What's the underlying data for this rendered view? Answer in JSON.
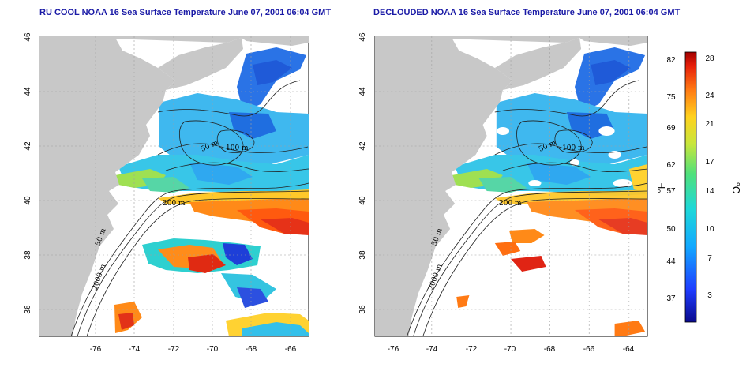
{
  "panels": [
    {
      "id": "left",
      "title": "RU COOL NOAA 16 Sea Surface Temperature June 07, 2001 06:04 GMT"
    },
    {
      "id": "right",
      "title": "DECLOUDED NOAA 16 Sea Surface Temperature June 07, 2001 06:04 GMT"
    }
  ],
  "axes": {
    "x_ticks": [
      "-76",
      "-74",
      "-72",
      "-70",
      "-68",
      "-66",
      "-64"
    ],
    "y_ticks": [
      "36",
      "38",
      "40",
      "42",
      "44",
      "46"
    ]
  },
  "contour_labels": {
    "c50_upper": "50 m",
    "c100": "100 m",
    "c200": "200 m",
    "c50_lower": "50 m",
    "c2000": "2000 m"
  },
  "colorbar": {
    "fahrenheit_unit": "°F",
    "celsius_unit": "°C",
    "fahrenheit_ticks": [
      "82",
      "75",
      "69",
      "62",
      "57",
      "50",
      "44",
      "37"
    ],
    "celsius_ticks": [
      "28",
      "24",
      "21",
      "17",
      "14",
      "10",
      "7",
      "3"
    ]
  },
  "colors": {
    "land": "#c8c8c8",
    "water_nodata": "#ffffff",
    "title": "#1a1aa6",
    "grid": "#a0a0a0"
  }
}
